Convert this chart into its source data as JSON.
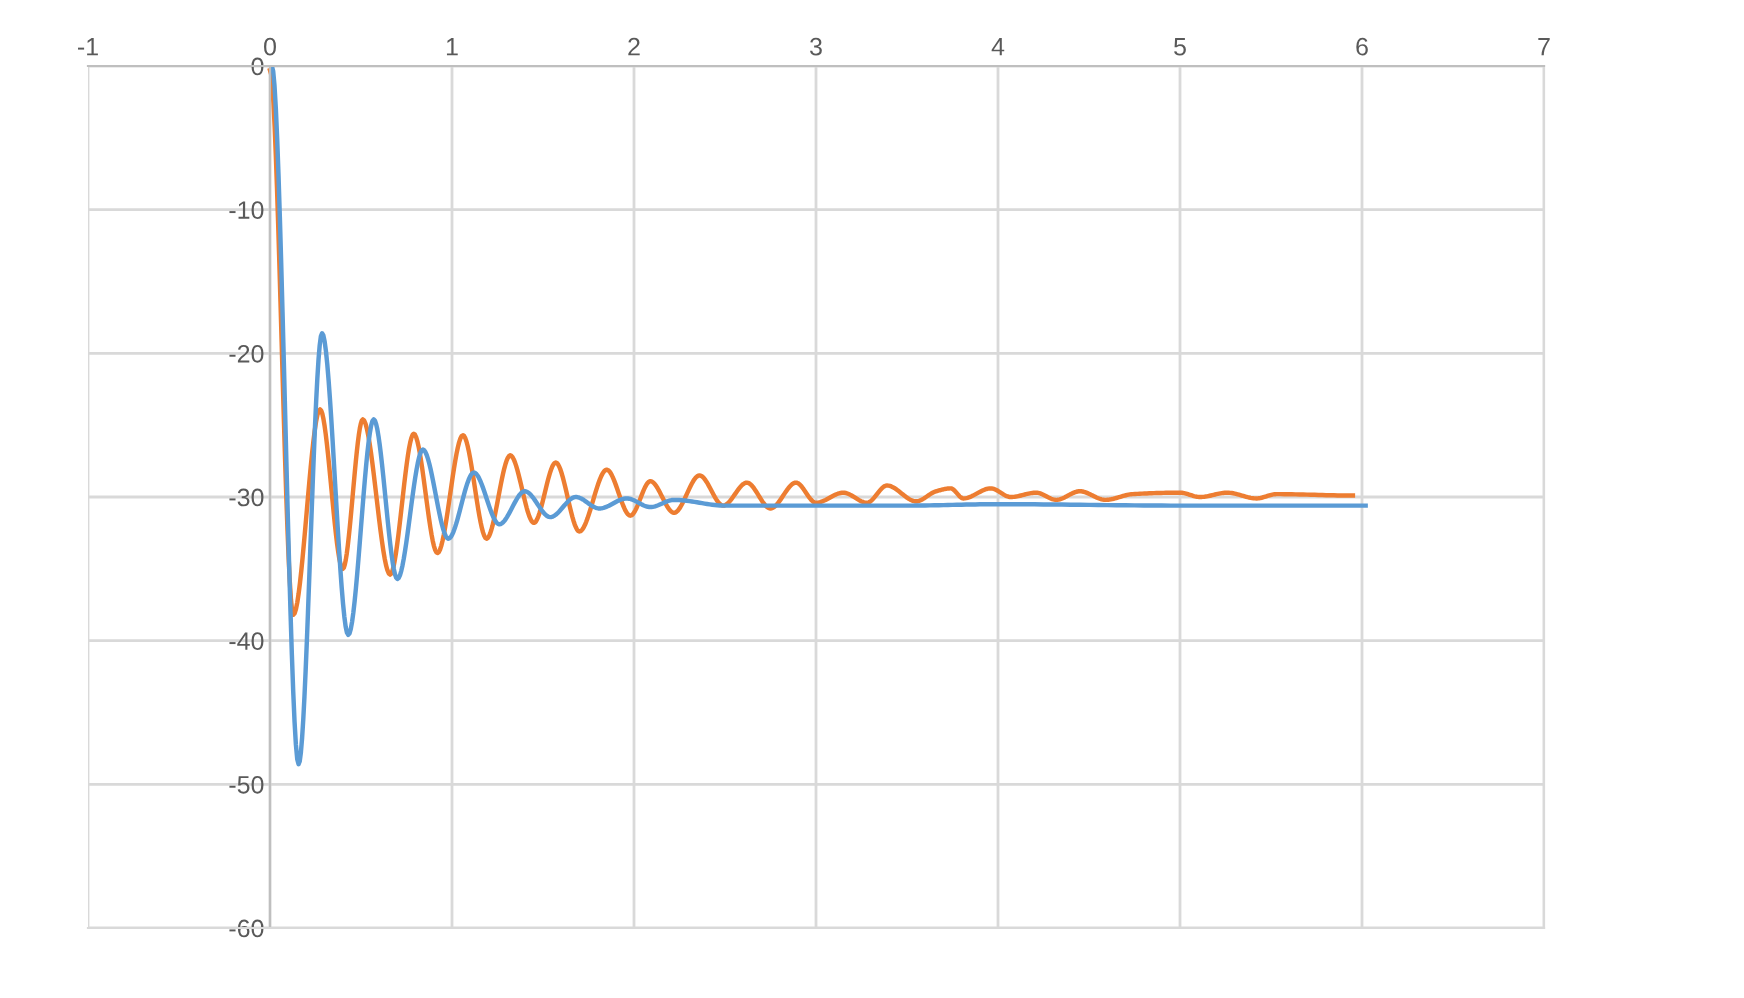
{
  "chart_data": {
    "type": "line",
    "xlim": [
      -1,
      7
    ],
    "ylim": [
      -60,
      0
    ],
    "xticks": [
      -1,
      0,
      1,
      2,
      3,
      4,
      5,
      6,
      7
    ],
    "yticks": [
      -60,
      -50,
      -40,
      -30,
      -20,
      -10,
      0
    ],
    "grid": true,
    "marker": "none",
    "line_style": "solid",
    "series": [
      {
        "color": "#ed7d31",
        "x": [
          0,
          0.128,
          0.275,
          0.4,
          0.51,
          0.66,
          0.79,
          0.92,
          1.06,
          1.19,
          1.32,
          1.45,
          1.57,
          1.7,
          1.85,
          1.98,
          2.09,
          2.22,
          2.36,
          2.49,
          2.62,
          2.75,
          2.89,
          3.0,
          3.15,
          3.28,
          3.39,
          3.55,
          3.66,
          3.74,
          3.81,
          3.96,
          4.07,
          4.21,
          4.32,
          4.45,
          4.59,
          4.74,
          5.0,
          5.11,
          5.26,
          5.42,
          5.53,
          5.95
        ],
        "values": [
          -0.3,
          -38.2,
          -23.9,
          -35,
          -24.6,
          -35.4,
          -25.6,
          -33.9,
          -25.7,
          -32.9,
          -27.1,
          -31.8,
          -27.6,
          -32.4,
          -28.1,
          -31.3,
          -28.9,
          -31.1,
          -28.5,
          -30.6,
          -29,
          -30.8,
          -29,
          -30.4,
          -29.7,
          -30.4,
          -29.2,
          -30.3,
          -29.6,
          -29.4,
          -30.1,
          -29.4,
          -30,
          -29.7,
          -30.2,
          -29.6,
          -30.2,
          -29.8,
          -29.7,
          -30,
          -29.7,
          -30.1,
          -29.8,
          -29.9
        ]
      },
      {
        "color": "#5b9bd5",
        "x": [
          0.01,
          0.157,
          0.286,
          0.43,
          0.57,
          0.7,
          0.84,
          0.98,
          1.12,
          1.26,
          1.4,
          1.54,
          1.68,
          1.81,
          1.96,
          2.09,
          2.22,
          2.5,
          3.0,
          3.5,
          4.0,
          5.0,
          6.02
        ],
        "values": [
          0,
          -48.6,
          -18.6,
          -39.6,
          -24.6,
          -35.7,
          -26.7,
          -32.9,
          -28.3,
          -31.9,
          -29.6,
          -31.4,
          -30,
          -30.8,
          -30.1,
          -30.7,
          -30.2,
          -30.6,
          -30.6,
          -30.6,
          -30.5,
          -30.6,
          -30.6
        ]
      }
    ]
  }
}
